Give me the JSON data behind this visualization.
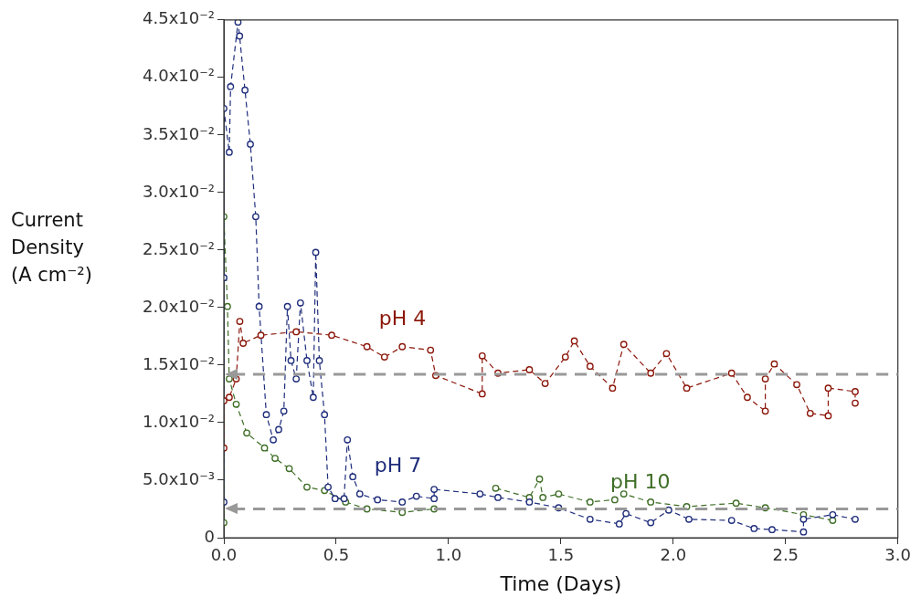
{
  "chart_data": {
    "type": "line",
    "xlabel": "Time (Days)",
    "ylabel": "Current Density (A cm⁻²)",
    "xlim": [
      0,
      3
    ],
    "xticks": [
      {
        "value": 0,
        "label": "0.0"
      },
      0.5,
      {
        "value": 1,
        "label": "1.0"
      },
      1.5,
      {
        "value": 2,
        "label": "2.0"
      },
      2.5,
      {
        "value": 3,
        "label": "3.0"
      }
    ],
    "ylim": [
      0,
      0.045
    ],
    "yticks": [
      0,
      {
        "value": 0.005,
        "label": "5.0x10⁻³"
      },
      {
        "value": 0.01,
        "label": "1.0x10⁻²"
      },
      {
        "value": 0.015,
        "label": "1.5x10⁻²"
      },
      {
        "value": 0.02,
        "label": "2.0x10⁻²"
      },
      {
        "value": 0.025,
        "label": "2.5x10⁻²"
      },
      {
        "value": 0.03,
        "label": "3.0x10⁻²"
      },
      {
        "value": 0.035,
        "label": "3.5x10⁻²"
      },
      {
        "value": 0.04,
        "label": "4.0x10⁻²"
      },
      {
        "value": 0.045,
        "label": "4.5x10⁻²"
      }
    ],
    "grid": false,
    "legend": false,
    "marker": "circle",
    "line_style": "dashed",
    "series": [
      {
        "name": "pH 4",
        "color": "#8b1609",
        "x": [
          0,
          0,
          0.024,
          0.055,
          0.071,
          0.086,
          0.165,
          0.322,
          0.48,
          0.637,
          0.715,
          0.794,
          0.92,
          0.943,
          1.15,
          1.15,
          1.22,
          1.36,
          1.43,
          1.52,
          1.56,
          1.63,
          1.73,
          1.78,
          1.9,
          1.97,
          2.06,
          2.26,
          2.33,
          2.41,
          2.41,
          2.45,
          2.55,
          2.61,
          2.69,
          2.69,
          2.81,
          2.81
        ],
        "values": [
          0.0078,
          0.0119,
          0.0122,
          0.0138,
          0.0188,
          0.0169,
          0.0176,
          0.0179,
          0.0176,
          0.0166,
          0.0157,
          0.0166,
          0.0163,
          0.0141,
          0.0125,
          0.0158,
          0.0143,
          0.0146,
          0.0134,
          0.0157,
          0.0171,
          0.0149,
          0.013,
          0.0168,
          0.0143,
          0.016,
          0.013,
          0.0143,
          0.0122,
          0.011,
          0.0138,
          0.0151,
          0.0133,
          0.0108,
          0.0106,
          0.013,
          0.0127,
          0.0117
        ]
      },
      {
        "name": "pH 7",
        "color": "#1f2d7b",
        "x": [
          0,
          0,
          0,
          0.024,
          0.03,
          0.063,
          0.07,
          0.094,
          0.118,
          0.142,
          0.157,
          0.189,
          0.22,
          0.244,
          0.267,
          0.283,
          0.299,
          0.322,
          0.341,
          0.37,
          0.398,
          0.409,
          0.425,
          0.448,
          0.464,
          0.495,
          0.535,
          0.55,
          0.574,
          0.605,
          0.684,
          0.794,
          0.857,
          0.936,
          0.936,
          1.14,
          1.22,
          1.36,
          1.49,
          1.63,
          1.76,
          1.79,
          1.9,
          1.98,
          2.07,
          2.26,
          2.36,
          2.44,
          2.58,
          2.58,
          2.71,
          2.81
        ],
        "values": [
          0.0031,
          0.0226,
          0.0373,
          0.0335,
          0.0392,
          0.0448,
          0.0436,
          0.0389,
          0.0342,
          0.0279,
          0.0201,
          0.0107,
          0.0085,
          0.0094,
          0.011,
          0.0201,
          0.0154,
          0.0138,
          0.0204,
          0.0154,
          0.0122,
          0.0248,
          0.0154,
          0.0107,
          0.0044,
          0.0034,
          0.0034,
          0.0085,
          0.0053,
          0.0038,
          0.0033,
          0.0031,
          0.0036,
          0.0034,
          0.0042,
          0.0038,
          0.0035,
          0.0031,
          0.0026,
          0.0016,
          0.0012,
          0.0021,
          0.0013,
          0.0024,
          0.0016,
          0.0015,
          0.0008,
          0.0007,
          0.0005,
          0.0016,
          0.002,
          0.0016
        ]
      },
      {
        "name": "pH 10",
        "color": "#3f6e27",
        "x": [
          0,
          0,
          0.016,
          0.024,
          0.055,
          0.102,
          0.181,
          0.228,
          0.291,
          0.37,
          0.448,
          0.542,
          0.637,
          0.794,
          0.936,
          1.14,
          1.21,
          1.36,
          1.405,
          1.42,
          1.49,
          1.63,
          1.74,
          1.78,
          1.9,
          2.06,
          2.28,
          2.41,
          2.58,
          2.71
        ],
        "values": [
          0.0013,
          0.0279,
          0.0201,
          0.0138,
          0.0116,
          0.0091,
          0.0078,
          0.0069,
          0.006,
          0.0044,
          0.0041,
          0.0031,
          0.0025,
          0.0022,
          0.0025,
          null,
          0.0043,
          0.0035,
          0.0051,
          0.0035,
          0.0038,
          0.0031,
          0.0033,
          0.0038,
          0.0031,
          0.0027,
          0.003,
          0.0026,
          0.002,
          0.0015
        ]
      }
    ],
    "ref_lines": [
      {
        "axis": "y",
        "value": 0.0142,
        "color": "#999999",
        "line_style": "dashed"
      },
      {
        "axis": "y",
        "value": 0.0025,
        "color": "#999999",
        "line_style": "dashed"
      }
    ]
  }
}
